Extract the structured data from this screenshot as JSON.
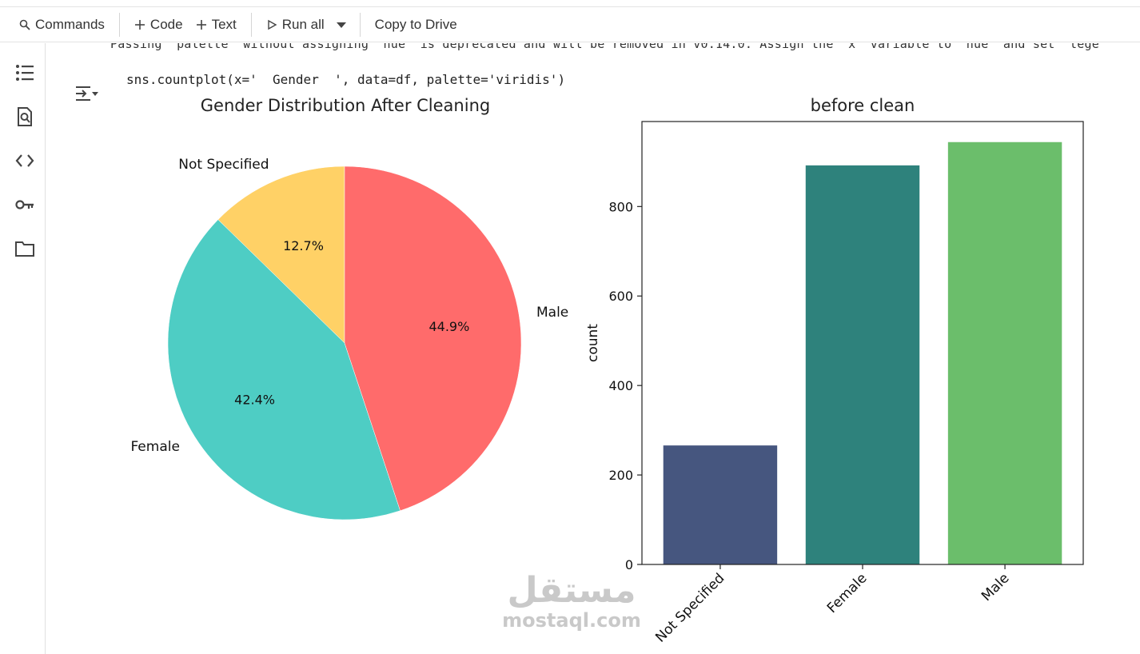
{
  "toolbar": {
    "commands_label": "Commands",
    "code_label": "Code",
    "text_label": "Text",
    "run_all_label": "Run all",
    "copy_to_drive_label": "Copy to Drive"
  },
  "sidebar": {
    "icons": [
      "toc-icon",
      "find-icon",
      "code-snippets-icon",
      "secrets-key-icon",
      "files-folder-icon"
    ]
  },
  "cell": {
    "warning_text": "Passing `palette` without assigning `hue` is deprecated and will be removed in v0.14.0. Assign the `x` variable to `hue` and set `lege",
    "code_line": "sns.countplot(x='  Gender  ', data=df, palette='viridis')"
  },
  "chart_data": [
    {
      "type": "pie",
      "title": "Gender Distribution After Cleaning",
      "slices": [
        {
          "label": "Not Specified",
          "value": 12.7,
          "pct_label": "12.7%",
          "color": "#FFD166"
        },
        {
          "label": "Female",
          "value": 42.4,
          "pct_label": "42.4%",
          "color": "#4ECDC4"
        },
        {
          "label": "Male",
          "value": 44.9,
          "pct_label": "44.9%",
          "color": "#FF6B6B"
        }
      ]
    },
    {
      "type": "bar",
      "title": "before clean",
      "xlabel": "",
      "ylabel": "count",
      "categories": [
        "Not Specified",
        "Female",
        "Male"
      ],
      "values": [
        266,
        892,
        944
      ],
      "colors": [
        "#46567F",
        "#2E827C",
        "#6BBE6B"
      ],
      "yticks": [
        0,
        200,
        400,
        600,
        800
      ],
      "ylim": [
        0,
        990
      ]
    }
  ],
  "watermark": {
    "arabic": "مستقل",
    "latin": "mostaql.com"
  }
}
